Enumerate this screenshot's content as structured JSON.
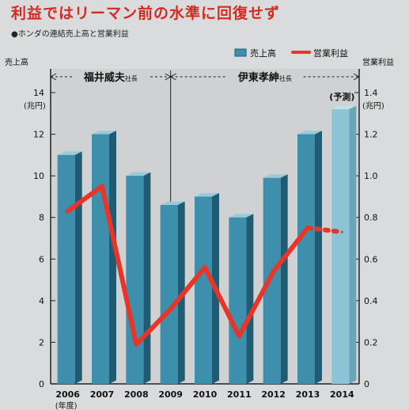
{
  "title": "利益ではリーマン前の水準に回復せず",
  "subtitle": "●ホンダの連結売上高と営業利益",
  "chart_data": {
    "type": "bar",
    "categories": [
      "2006",
      "2007",
      "2008",
      "2009",
      "2010",
      "2011",
      "2012",
      "2013",
      "2014"
    ],
    "x_unit_label": "(年度)",
    "series": [
      {
        "name": "売上高",
        "type": "bar",
        "axis": "left",
        "values": [
          11.0,
          12.0,
          10.0,
          8.6,
          9.0,
          8.0,
          9.9,
          12.0,
          13.2
        ],
        "annotations": [
          {
            "category": "2014",
            "text": "(予測)"
          }
        ]
      },
      {
        "name": "営業利益",
        "type": "line",
        "axis": "right",
        "values": [
          0.83,
          0.95,
          0.19,
          0.36,
          0.56,
          0.23,
          0.54,
          0.75,
          0.73
        ],
        "dotted_from": "2013"
      }
    ],
    "y_left": {
      "label": "売上高",
      "unit": "(兆円)",
      "ylim": [
        0,
        14
      ],
      "ticks": [
        "0",
        "2",
        "4",
        "6",
        "8",
        "10",
        "12",
        "14"
      ]
    },
    "y_right": {
      "label": "営業利益",
      "unit": "(兆円)",
      "ylim": [
        0,
        1.4
      ],
      "ticks": [
        "0",
        "0.2",
        "0.4",
        "0.6",
        "0.8",
        "1.0",
        "1.2",
        "1.4"
      ]
    },
    "legend": {
      "position": "top-right",
      "items": [
        "売上高",
        "営業利益"
      ]
    },
    "periods": [
      {
        "label": "福井威夫",
        "suffix": "社長",
        "from": "2006",
        "to": "2009"
      },
      {
        "label": "伊東孝紳",
        "suffix": "社長",
        "from": "2009",
        "to": "2014"
      }
    ],
    "colors": {
      "bar_front": "#3d8fac",
      "bar_top": "#9cc9d9",
      "bar_side": "#1f5c73",
      "bar_forecast": "#8cc3d5",
      "line": "#e8352a",
      "plot_bg": "#cfd1d2"
    },
    "grid": false
  }
}
